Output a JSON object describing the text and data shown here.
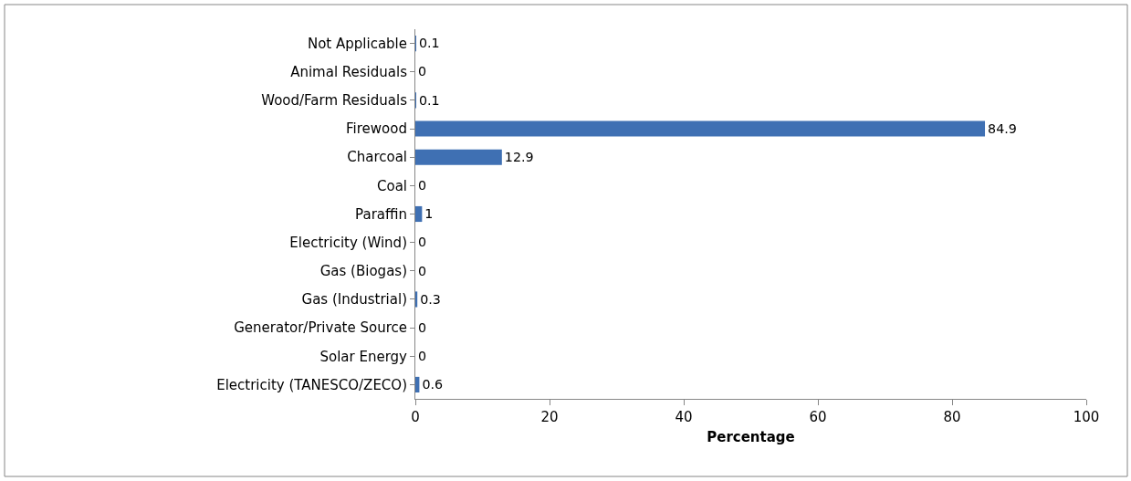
{
  "chart_data": {
    "type": "bar",
    "orientation": "horizontal",
    "xlabel": "Percentage",
    "categories": [
      "Not Applicable",
      "Animal Residuals",
      "Wood/Farm Residuals",
      "Firewood",
      "Charcoal",
      "Coal",
      "Paraffin",
      "Electricity (Wind)",
      "Gas (Biogas)",
      "Gas (Industrial)",
      "Generator/Private Source",
      "Solar Energy",
      "Electricity (TANESCO/ZECO)"
    ],
    "values": [
      0.1,
      0,
      0.1,
      84.9,
      12.9,
      0,
      1,
      0,
      0,
      0.3,
      0,
      0,
      0.6
    ],
    "color": "#3f70b3",
    "xlim": [
      0,
      100
    ],
    "xticks": [
      0,
      20,
      40,
      60,
      80,
      100
    ],
    "data_labels": true
  }
}
